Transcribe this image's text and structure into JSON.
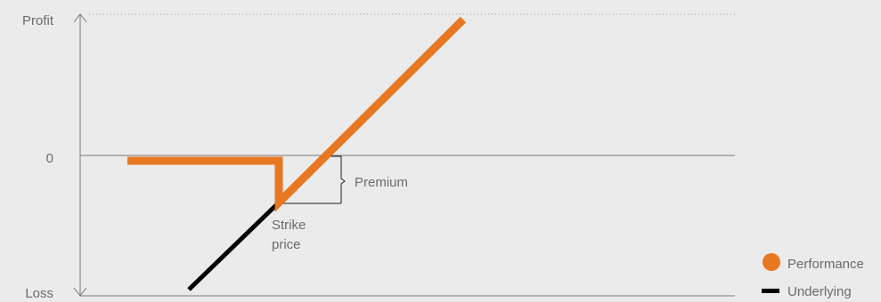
{
  "chart_data": {
    "type": "line",
    "title": "",
    "y_axis_labels": {
      "top": "Profit",
      "zero": "0",
      "bottom": "Loss"
    },
    "annotations": {
      "premium": "Premium",
      "strike_line1": "Strike",
      "strike_line2": "price"
    },
    "legend": {
      "position": "bottom-right",
      "items": [
        "Performance",
        "Underlying"
      ]
    },
    "series": [
      {
        "name": "Performance",
        "color": "#e87722",
        "points": [
          [
            143,
            181
          ],
          [
            313,
            181
          ],
          [
            313,
            228
          ],
          [
            520,
            22
          ]
        ]
      },
      {
        "name": "Underlying",
        "color": "#000000",
        "points": [
          [
            212,
            326
          ],
          [
            313,
            228
          ]
        ]
      }
    ]
  }
}
